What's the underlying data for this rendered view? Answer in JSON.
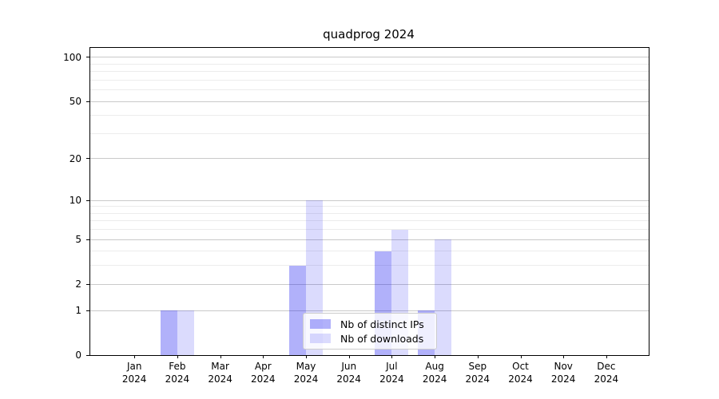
{
  "title": "quadprog 2024",
  "chart_data": {
    "type": "bar",
    "title": "quadprog 2024",
    "categories": [
      "Jan 2024",
      "Feb 2024",
      "Mar 2024",
      "Apr 2024",
      "May 2024",
      "Jun 2024",
      "Jul 2024",
      "Aug 2024",
      "Sep 2024",
      "Oct 2024",
      "Nov 2024",
      "Dec 2024"
    ],
    "series": [
      {
        "name": "Nb of distinct IPs",
        "values": [
          0,
          1,
          0,
          0,
          3,
          0,
          4,
          1,
          0,
          0,
          0,
          0
        ],
        "color": "rgba(30,30,240,0.345)"
      },
      {
        "name": "Nb of downloads",
        "values": [
          0,
          1,
          0,
          0,
          10,
          0,
          6,
          5,
          0,
          0,
          0,
          0
        ],
        "color": "rgba(30,30,240,0.16)"
      }
    ],
    "yscale": "log1p",
    "ylim": [
      0,
      116
    ],
    "ytick_values": [
      0,
      1,
      2,
      5,
      10,
      20,
      50,
      100
    ],
    "ytick_labels": [
      "0",
      "1",
      "2",
      "5",
      "10",
      "20",
      "50",
      "100"
    ],
    "minor_gridline_values": [
      3,
      4,
      6,
      7,
      8,
      9,
      30,
      40,
      60,
      70,
      80,
      90
    ],
    "grid": true,
    "legend_position": "lower-center-inside",
    "xlabel": "",
    "ylabel": ""
  },
  "legend": {
    "items": [
      {
        "label": "Nb of distinct IPs"
      },
      {
        "label": "Nb of downloads"
      }
    ]
  },
  "colors": {
    "background": "#ffffff",
    "axis": "#000000",
    "grid_major": "#c9c9c9",
    "grid_minor": "#ececec",
    "bar_distinct_ips": "rgba(30,30,240,0.345)",
    "bar_downloads": "rgba(30,30,240,0.16)",
    "legend_border": "#cccccc"
  }
}
